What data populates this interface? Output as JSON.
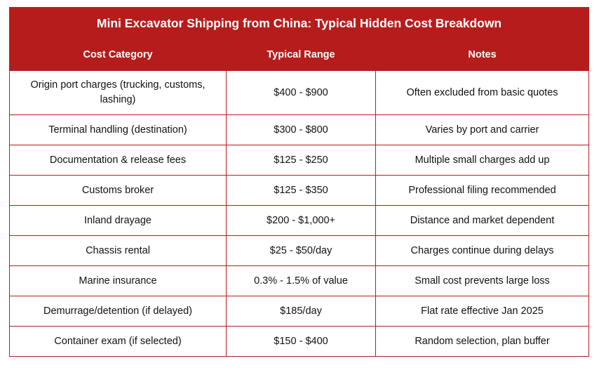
{
  "table": {
    "title": "Mini Excavator Shipping from China: Typical Hidden Cost Breakdown",
    "headers": [
      "Cost Category",
      "Typical Range",
      "Notes"
    ],
    "rows": [
      [
        "Origin port charges (trucking, customs, lashing)",
        "$400 - $900",
        "Often excluded from basic quotes"
      ],
      [
        "Terminal handling (destination)",
        "$300 - $800",
        "Varies by port and carrier"
      ],
      [
        "Documentation & release fees",
        "$125 - $250",
        "Multiple small charges add up"
      ],
      [
        "Customs broker",
        "$125 - $350",
        "Professional filing recommended"
      ],
      [
        "Inland drayage",
        "$200 - $1,000+",
        "Distance and market dependent"
      ],
      [
        "Chassis rental",
        "$25 - $50/day",
        "Charges continue during delays"
      ],
      [
        "Marine insurance",
        "0.3% - 1.5% of value",
        "Small cost prevents large loss"
      ],
      [
        "Demurrage/detention (if delayed)",
        "$185/day",
        "Flat rate effective Jan 2025"
      ],
      [
        "Container exam (if selected)",
        "$150 - $400",
        "Random selection, plan buffer"
      ]
    ],
    "colors": {
      "header_bg": "#b71c1c",
      "header_text": "#ffffff",
      "border": "#b71c1c",
      "body_text": "#111111"
    }
  }
}
